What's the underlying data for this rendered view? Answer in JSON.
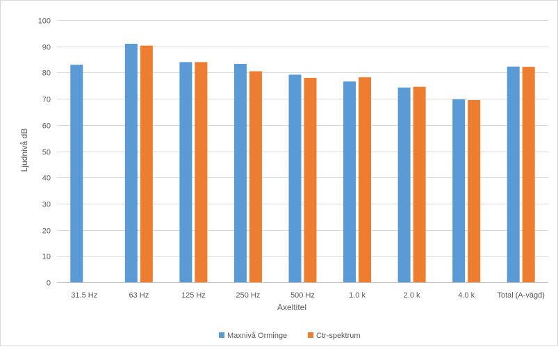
{
  "chart_data": {
    "type": "bar",
    "title": "",
    "xlabel": "Axeltitel",
    "ylabel": "Ljudnivå dB",
    "ylim": [
      0,
      100
    ],
    "yticks": [
      0,
      10,
      20,
      30,
      40,
      50,
      60,
      70,
      80,
      90,
      100
    ],
    "grid": true,
    "legend_position": "bottom",
    "categories": [
      "31.5 Hz",
      "63 Hz",
      "125 Hz",
      "250 Hz",
      "500 Hz",
      "1.0 k",
      "2.0 k",
      "4.0 k",
      "Total (A-vägd)"
    ],
    "series": [
      {
        "name": "Maxnivå Orminge",
        "color": "#5b9bd5",
        "values": [
          83,
          91,
          84,
          83.3,
          79.2,
          76.6,
          74.3,
          69.8,
          82.3
        ]
      },
      {
        "name": "Ctr-spektrum",
        "color": "#ed7d31",
        "values": [
          null,
          90.3,
          84,
          80.5,
          78,
          78.2,
          74.6,
          69.5,
          82.2
        ]
      }
    ]
  }
}
